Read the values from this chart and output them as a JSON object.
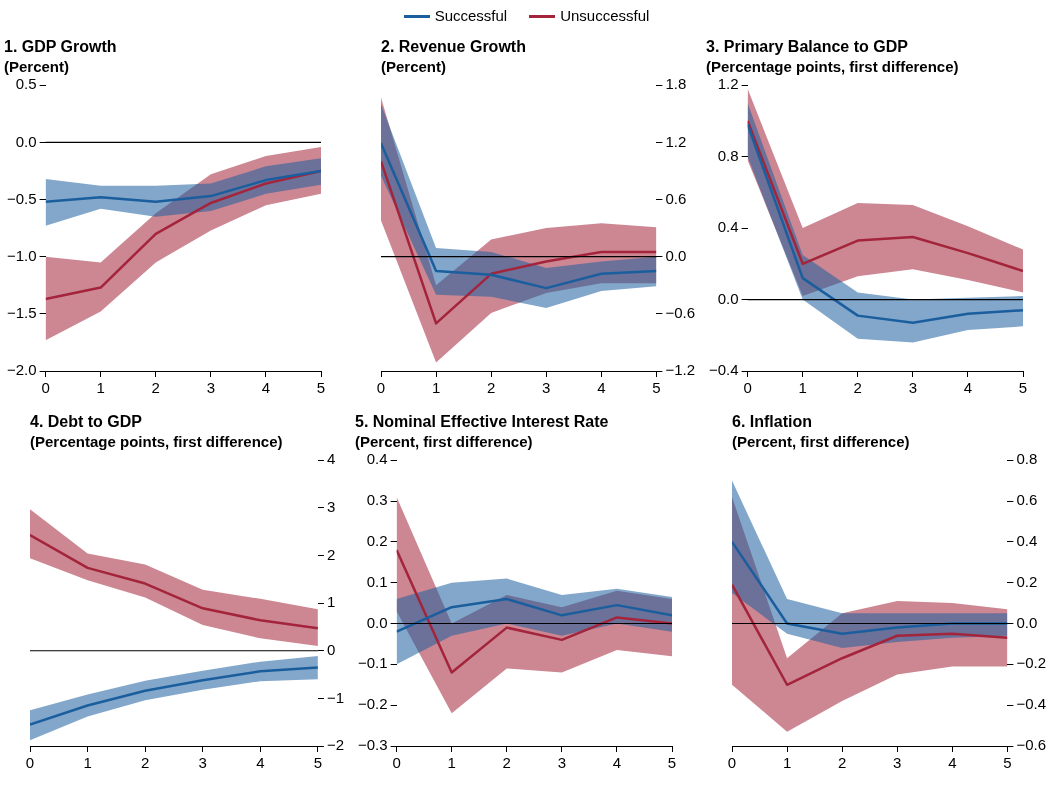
{
  "chart_data": [
    {
      "type": "line",
      "title": "1. GDP Growth",
      "subtitle": "(Percent)",
      "x": [
        0,
        1,
        2,
        3,
        4,
        5
      ],
      "xlim": [
        0,
        5
      ],
      "xticks": [
        0,
        1,
        2,
        3,
        4,
        5
      ],
      "ylim": [
        -2,
        0.5
      ],
      "yticks": [
        {
          "value": -2,
          "label": "−2.0"
        },
        {
          "value": -1.5,
          "label": "−1.5"
        },
        {
          "value": -1,
          "label": "−1.0"
        },
        {
          "value": -0.5,
          "label": "−0.5"
        },
        {
          "value": 0,
          "label": "0.0"
        },
        0.5
      ],
      "legend": "top",
      "ref_lines": [
        {
          "axis": "y",
          "value": 0,
          "color": "#000000"
        }
      ],
      "series": [
        {
          "name": "Successful",
          "color": "#1b5e9e",
          "values": [
            -0.52,
            -0.48,
            -0.52,
            -0.47,
            -0.33,
            -0.25
          ],
          "lower": [
            -0.73,
            -0.58,
            -0.65,
            -0.6,
            -0.45,
            -0.37
          ],
          "upper": [
            -0.32,
            -0.38,
            -0.38,
            -0.36,
            -0.21,
            -0.14
          ]
        },
        {
          "name": "Unsuccessful",
          "color": "#a3243b",
          "values": [
            -1.37,
            -1.27,
            -0.8,
            -0.53,
            -0.36,
            -0.25
          ],
          "lower": [
            -1.73,
            -1.48,
            -1.05,
            -0.77,
            -0.55,
            -0.45
          ],
          "upper": [
            -1,
            -1.05,
            -0.62,
            -0.28,
            -0.12,
            -0.04
          ]
        }
      ]
    },
    {
      "type": "line",
      "title": "2. Revenue Growth",
      "subtitle": "(Percent)",
      "x": [
        0,
        1,
        2,
        3,
        4,
        5
      ],
      "xlim": [
        0,
        5
      ],
      "xticks": [
        0,
        1,
        2,
        3,
        4,
        5
      ],
      "y2lim": [
        -1.2,
        1.8
      ],
      "y2ticks": [
        {
          "value": -1.2,
          "label": "−1.2"
        },
        {
          "value": -0.6,
          "label": "−0.6"
        },
        {
          "value": 0,
          "label": "0.0"
        },
        0.6,
        1.2,
        1.8
      ],
      "ref_lines": [
        {
          "axis": "y2",
          "value": 0,
          "color": "#000000"
        }
      ],
      "series": [
        {
          "color": "#1b5e9e",
          "axis": "y2",
          "values": [
            1.19,
            -0.15,
            -0.19,
            -0.33,
            -0.18,
            -0.15
          ],
          "lower": [
            0.85,
            -0.4,
            -0.42,
            -0.54,
            -0.36,
            -0.31
          ],
          "upper": [
            1.6,
            0.09,
            0.05,
            -0.12,
            -0.05,
            0
          ]
        },
        {
          "color": "#a3243b",
          "axis": "y2",
          "values": [
            1,
            -0.7,
            -0.18,
            -0.05,
            0.05,
            0.05
          ],
          "lower": [
            0.38,
            -1.11,
            -0.59,
            -0.38,
            -0.28,
            -0.28
          ],
          "upper": [
            1.67,
            -0.3,
            0.18,
            0.3,
            0.35,
            0.31
          ]
        }
      ]
    },
    {
      "type": "line",
      "title": "3. Primary Balance to GDP",
      "subtitle": "(Percentage points, first difference)",
      "x": [
        0,
        1,
        2,
        3,
        4,
        5
      ],
      "xlim": [
        0,
        5
      ],
      "xticks": [
        0,
        1,
        2,
        3,
        4,
        5
      ],
      "ylim": [
        -0.4,
        1.2
      ],
      "yticks": [
        {
          "value": -0.4,
          "label": "−0.4"
        },
        {
          "value": 0,
          "label": "0.0"
        },
        0.4,
        0.8,
        1.2
      ],
      "ref_lines": [
        {
          "axis": "y",
          "value": 0,
          "color": "#000000"
        }
      ],
      "series": [
        {
          "color": "#1b5e9e",
          "values": [
            0.98,
            0.12,
            -0.09,
            -0.13,
            -0.08,
            -0.06
          ],
          "lower": [
            0.8,
            0,
            -0.22,
            -0.24,
            -0.17,
            -0.15
          ],
          "upper": [
            1.1,
            0.25,
            0.04,
            0,
            0.01,
            0.02
          ]
        },
        {
          "color": "#a3243b",
          "values": [
            1,
            0.2,
            0.33,
            0.35,
            0.26,
            0.16
          ],
          "lower": [
            0.78,
            0.02,
            0.13,
            0.17,
            0.11,
            0.04
          ],
          "upper": [
            1.18,
            0.4,
            0.54,
            0.53,
            0.41,
            0.28
          ]
        }
      ]
    },
    {
      "type": "line",
      "title": "4. Debt to GDP",
      "subtitle": "(Percentage points, first difference)",
      "x": [
        0,
        1,
        2,
        3,
        4,
        5
      ],
      "xlim": [
        0,
        5
      ],
      "xticks": [
        0,
        1,
        2,
        3,
        4,
        5
      ],
      "y2lim": [
        -2,
        4
      ],
      "y2ticks": [
        {
          "value": -2,
          "label": "−2"
        },
        {
          "value": -1,
          "label": "−1"
        },
        0,
        1,
        2,
        3,
        4
      ],
      "ref_lines": [
        {
          "axis": "y2",
          "value": 0,
          "color": "#000000"
        }
      ],
      "series": [
        {
          "color": "#1b5e9e",
          "axis": "y2",
          "values": [
            -1.55,
            -1.15,
            -0.84,
            -0.62,
            -0.43,
            -0.35
          ],
          "lower": [
            -1.88,
            -1.38,
            -1.04,
            -0.82,
            -0.64,
            -0.6
          ],
          "upper": [
            -1.25,
            -0.92,
            -0.63,
            -0.42,
            -0.23,
            -0.11
          ]
        },
        {
          "color": "#a3243b",
          "axis": "y2",
          "values": [
            2.43,
            1.74,
            1.41,
            0.89,
            0.64,
            0.47
          ],
          "lower": [
            1.94,
            1.48,
            1.12,
            0.54,
            0.26,
            0.1
          ],
          "upper": [
            2.97,
            2.04,
            1.81,
            1.28,
            1.09,
            0.87
          ]
        }
      ]
    },
    {
      "type": "line",
      "title": "5. Nominal Effective Interest Rate",
      "subtitle": "(Percent, first difference)",
      "x": [
        0,
        1,
        2,
        3,
        4,
        5
      ],
      "xlim": [
        0,
        5
      ],
      "xticks": [
        0,
        1,
        2,
        3,
        4,
        5
      ],
      "ylim": [
        -0.3,
        0.4
      ],
      "yticks": [
        {
          "value": -0.3,
          "label": "−0.3"
        },
        {
          "value": -0.2,
          "label": "−0.2"
        },
        {
          "value": -0.1,
          "label": "−0.1"
        },
        {
          "value": 0,
          "label": "0.0"
        },
        0.1,
        0.2,
        0.3,
        0.4
      ],
      "ref_lines": [
        {
          "axis": "y",
          "value": 0,
          "color": "#000000"
        }
      ],
      "series": [
        {
          "color": "#1b5e9e",
          "values": [
            -0.02,
            0.04,
            0.06,
            0.02,
            0.045,
            0.02
          ],
          "lower": [
            -0.1,
            -0.03,
            0,
            -0.03,
            0,
            -0.02
          ],
          "upper": [
            0.06,
            0.1,
            0.11,
            0.07,
            0.085,
            0.065
          ]
        },
        {
          "color": "#a3243b",
          "values": [
            0.18,
            -0.12,
            -0.01,
            -0.04,
            0.015,
            0
          ],
          "lower": [
            0.03,
            -0.22,
            -0.11,
            -0.12,
            -0.065,
            -0.08
          ],
          "upper": [
            0.31,
            0,
            0.07,
            0.04,
            0.08,
            0.06
          ]
        }
      ]
    },
    {
      "type": "line",
      "title": "6. Inflation",
      "subtitle": "(Percent, first difference)",
      "x": [
        0,
        1,
        2,
        3,
        4,
        5
      ],
      "xlim": [
        0,
        5
      ],
      "xticks": [
        0,
        1,
        2,
        3,
        4,
        5
      ],
      "y2lim": [
        -0.6,
        0.8
      ],
      "y2ticks": [
        {
          "value": -0.6,
          "label": "−0.6"
        },
        {
          "value": -0.4,
          "label": "−0.4"
        },
        {
          "value": -0.2,
          "label": "−0.2"
        },
        {
          "value": 0,
          "label": "0.0"
        },
        0.2,
        0.4,
        0.6,
        0.8
      ],
      "ref_lines": [
        {
          "axis": "y2",
          "value": 0,
          "color": "#000000"
        }
      ],
      "series": [
        {
          "color": "#1b5e9e",
          "axis": "y2",
          "values": [
            0.4,
            0,
            -0.05,
            -0.02,
            0,
            0
          ],
          "lower": [
            0.15,
            -0.05,
            -0.12,
            -0.09,
            -0.07,
            -0.06
          ],
          "upper": [
            0.7,
            0.12,
            0.05,
            0.05,
            0.05,
            0.05
          ]
        },
        {
          "color": "#a3243b",
          "axis": "y2",
          "values": [
            0.19,
            -0.3,
            -0.17,
            -0.06,
            -0.05,
            -0.07
          ],
          "lower": [
            -0.3,
            -0.53,
            -0.38,
            -0.25,
            -0.21,
            -0.21
          ],
          "upper": [
            0.62,
            -0.17,
            0.05,
            0.11,
            0.1,
            0.07
          ]
        }
      ]
    }
  ]
}
